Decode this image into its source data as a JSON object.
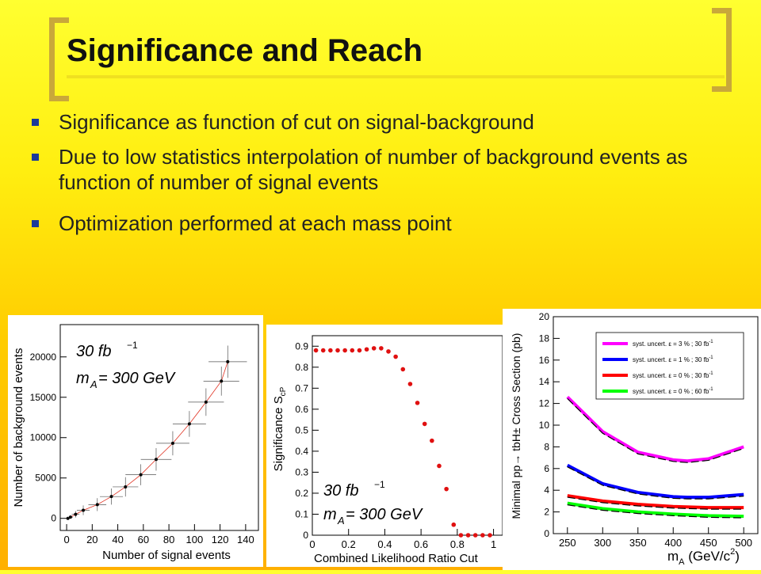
{
  "slide": {
    "title": "Significance and Reach",
    "bullets": [
      "Significance as function of cut on signal-background",
      "Due to low statistics interpolation of number of background events as function of number of signal events",
      "Optimization performed at each mass point"
    ]
  },
  "colors": {
    "bullet": "#1a3a9a",
    "bracket": "#c9a83a"
  },
  "chart_data": [
    {
      "type": "scatter",
      "xlabel": "Number of signal events",
      "ylabel": "Number of background events",
      "annotation_lumi": "30 fb",
      "annotation_lumi_exp": "−1",
      "annotation_mass_prefix": "m",
      "annotation_mass_sub": "A",
      "annotation_mass_value": " = 300 GeV",
      "xlim": [
        -5,
        150
      ],
      "ylim": [
        -1500,
        24000
      ],
      "xticks": [
        0,
        20,
        40,
        60,
        80,
        100,
        120,
        140
      ],
      "yticks": [
        0,
        5000,
        10000,
        15000,
        20000
      ],
      "x": [
        1,
        3,
        7,
        13,
        24,
        35,
        46,
        58,
        70,
        83,
        96,
        109,
        121,
        126
      ],
      "y": [
        0,
        150,
        500,
        1000,
        1700,
        2700,
        3900,
        5400,
        7300,
        9300,
        11700,
        14400,
        17000,
        19400
      ],
      "xerr": [
        1,
        2,
        3,
        5,
        7,
        9,
        10,
        12,
        12,
        13,
        13,
        14,
        14,
        15
      ],
      "yerr": [
        100,
        200,
        400,
        600,
        800,
        1000,
        1200,
        1300,
        1400,
        1500,
        1600,
        1700,
        1800,
        2000
      ],
      "fit_line_color": "#e03020"
    },
    {
      "type": "scatter",
      "xlabel": "Combined Likelihood Ratio Cut",
      "ylabel_main": "Significance S",
      "ylabel_sub": "cP",
      "annotation_lumi": "30 fb",
      "annotation_lumi_exp": "−1",
      "annotation_mass_prefix": "m",
      "annotation_mass_sub": "A",
      "annotation_mass_value": " = 300 GeV",
      "xlim": [
        0,
        1.05
      ],
      "ylim": [
        0,
        0.95
      ],
      "xticks": [
        0,
        0.2,
        0.4,
        0.6,
        0.8,
        1
      ],
      "yticks": [
        0,
        0.1,
        0.2,
        0.3,
        0.4,
        0.5,
        0.6,
        0.7,
        0.8,
        0.9
      ],
      "x": [
        0.02,
        0.06,
        0.1,
        0.14,
        0.18,
        0.22,
        0.26,
        0.3,
        0.34,
        0.38,
        0.42,
        0.46,
        0.5,
        0.54,
        0.58,
        0.62,
        0.66,
        0.7,
        0.74,
        0.78,
        0.82,
        0.86,
        0.9,
        0.94,
        0.98
      ],
      "y": [
        0.88,
        0.88,
        0.88,
        0.88,
        0.88,
        0.88,
        0.88,
        0.885,
        0.89,
        0.89,
        0.875,
        0.85,
        0.79,
        0.72,
        0.63,
        0.53,
        0.45,
        0.33,
        0.22,
        0.05,
        0.0,
        0.0,
        0.0,
        0.0,
        0.0
      ],
      "point_color": "#e01010"
    },
    {
      "type": "line",
      "xlabel_main": "m",
      "xlabel_sub": "A",
      "xlabel_unit": " (GeV/c",
      "xlabel_unit_sup": "2",
      "xlabel_unit_close": ")",
      "ylabel": "Minimal pp→ tbH± Cross Section (pb)",
      "xlim": [
        230,
        520
      ],
      "ylim": [
        0,
        20
      ],
      "xticks": [
        250,
        300,
        350,
        400,
        450,
        500
      ],
      "yticks": [
        0,
        2,
        4,
        6,
        8,
        10,
        12,
        14,
        16,
        18,
        20
      ],
      "series": [
        {
          "name": "syst. uncert. ε = 3 % ; 30 fb",
          "name_exp": "-1",
          "color": "#ff00ff",
          "x": [
            250,
            300,
            350,
            400,
            420,
            450,
            500
          ],
          "y": [
            12.6,
            9.4,
            7.5,
            6.8,
            6.7,
            6.9,
            8.0
          ]
        },
        {
          "name": "syst. uncert. ε = 1 % ; 30 fb",
          "name_exp": "-1",
          "color": "#0000ff",
          "x": [
            250,
            300,
            350,
            400,
            420,
            450,
            500
          ],
          "y": [
            6.3,
            4.6,
            3.8,
            3.4,
            3.35,
            3.35,
            3.6
          ]
        },
        {
          "name": "syst. uncert. ε = 0 % ; 30 fb",
          "name_exp": "-1",
          "color": "#ff0000",
          "x": [
            250,
            300,
            350,
            400,
            450,
            500
          ],
          "y": [
            3.5,
            3.0,
            2.7,
            2.5,
            2.4,
            2.4
          ]
        },
        {
          "name": "syst. uncert. ε = 0 % ; 60 fb",
          "name_exp": "-1",
          "color": "#00ff00",
          "x": [
            250,
            300,
            350,
            400,
            450,
            500
          ],
          "y": [
            2.8,
            2.3,
            2.0,
            1.8,
            1.65,
            1.6
          ]
        }
      ],
      "legend_position": "top-right"
    }
  ]
}
